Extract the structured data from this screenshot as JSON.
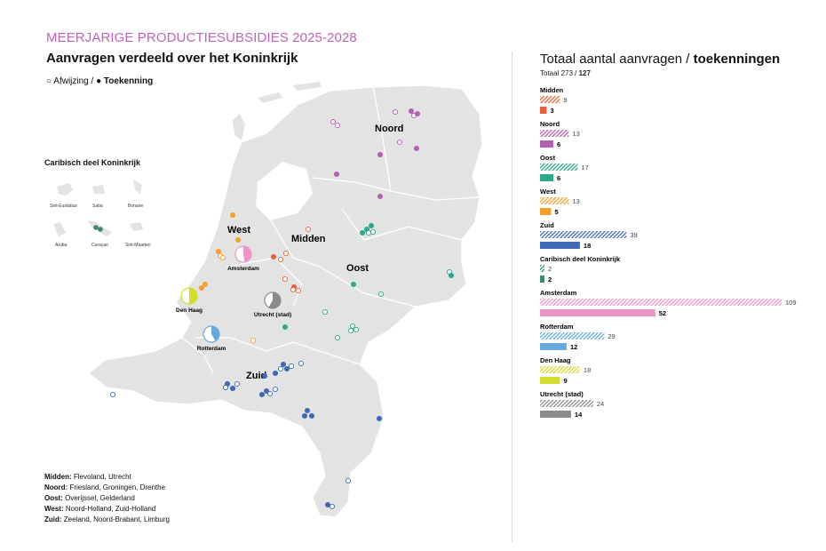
{
  "header": {
    "kicker": "MEERJARIGE PRODUCTIESUBSIDIES 2025-2028",
    "map_title": "Aanvragen verdeeld over het Koninkrijk",
    "legend_afwijzing": "Afwijzing /",
    "legend_toekenning": "Toekenning"
  },
  "map": {
    "region_labels": [
      "Noord",
      "Midden",
      "West",
      "Oost",
      "Zuid"
    ],
    "city_labels": [
      "Amsterdam",
      "Den Haag",
      "Utrecht (stad)",
      "Rotterdam"
    ],
    "caribbean_title": "Caribisch deel Koninkrijk",
    "islands": [
      "Sint-Eustatius",
      "Saba",
      "Bonaire",
      "Aruba",
      "Curaçao",
      "Sint-Maarten"
    ]
  },
  "region_legend": [
    {
      "name": "Midden:",
      "provinces": "Flevoland, Utrecht"
    },
    {
      "name": "Noord:",
      "provinces": "Friesland, Groningen, Drenthe"
    },
    {
      "name": "Oost:",
      "provinces": "Overijssel, Gelderland"
    },
    {
      "name": "West:",
      "provinces": "Noord-Holland, Zuid-Holland"
    },
    {
      "name": "Zuid:",
      "provinces": "Zeeland, Noord-Brabant, Limburg"
    }
  ],
  "chart_data": {
    "type": "bar",
    "title": "Totaal aantal aanvragen / toekenningen",
    "title_plain": "Totaal aantal aanvragen /",
    "title_bold": "toekenningen",
    "subtitle_plain": "Totaal 273 /",
    "subtitle_bold": "127",
    "total_aanvragen": 273,
    "total_toekenningen": 127,
    "categories": [
      "Midden",
      "Noord",
      "Oost",
      "West",
      "Zuid",
      "Caribisch deel Koninkrijk",
      "Amsterdam",
      "Rotterdam",
      "Den Haag",
      "Utrecht (stad)"
    ],
    "series": [
      {
        "name": "aanvragen",
        "values": [
          9,
          13,
          17,
          13,
          39,
          2,
          109,
          29,
          18,
          24
        ]
      },
      {
        "name": "toekenningen",
        "values": [
          3,
          6,
          6,
          5,
          18,
          2,
          52,
          12,
          9,
          14
        ]
      }
    ],
    "colors": [
      "#e8613c",
      "#b45fb0",
      "#2aaa8a",
      "#f3a12b",
      "#3f6ab3",
      "#3d8a6c",
      "#ef94c6",
      "#66a9df",
      "#d4dc2d",
      "#8b8b8b"
    ],
    "orientation": "horizontal"
  }
}
